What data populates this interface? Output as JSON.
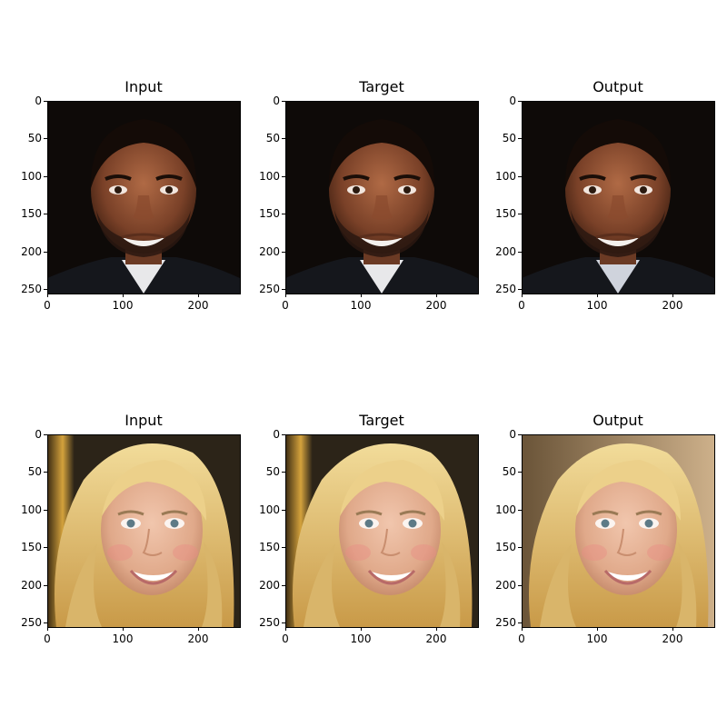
{
  "figure": {
    "rows": [
      {
        "panels": [
          {
            "title": "Input",
            "illustration": "man-face-photo"
          },
          {
            "title": "Target",
            "illustration": "man-face-photo"
          },
          {
            "title": "Output",
            "illustration": "man-face-generated"
          }
        ]
      },
      {
        "panels": [
          {
            "title": "Input",
            "illustration": "blonde-woman-face-photo"
          },
          {
            "title": "Target",
            "illustration": "blonde-woman-face-photo"
          },
          {
            "title": "Output",
            "illustration": "blonde-woman-face-generated"
          }
        ]
      }
    ],
    "x_ticks": [
      "0",
      "100",
      "200"
    ],
    "y_ticks": [
      "0",
      "50",
      "100",
      "150",
      "200",
      "250"
    ]
  }
}
